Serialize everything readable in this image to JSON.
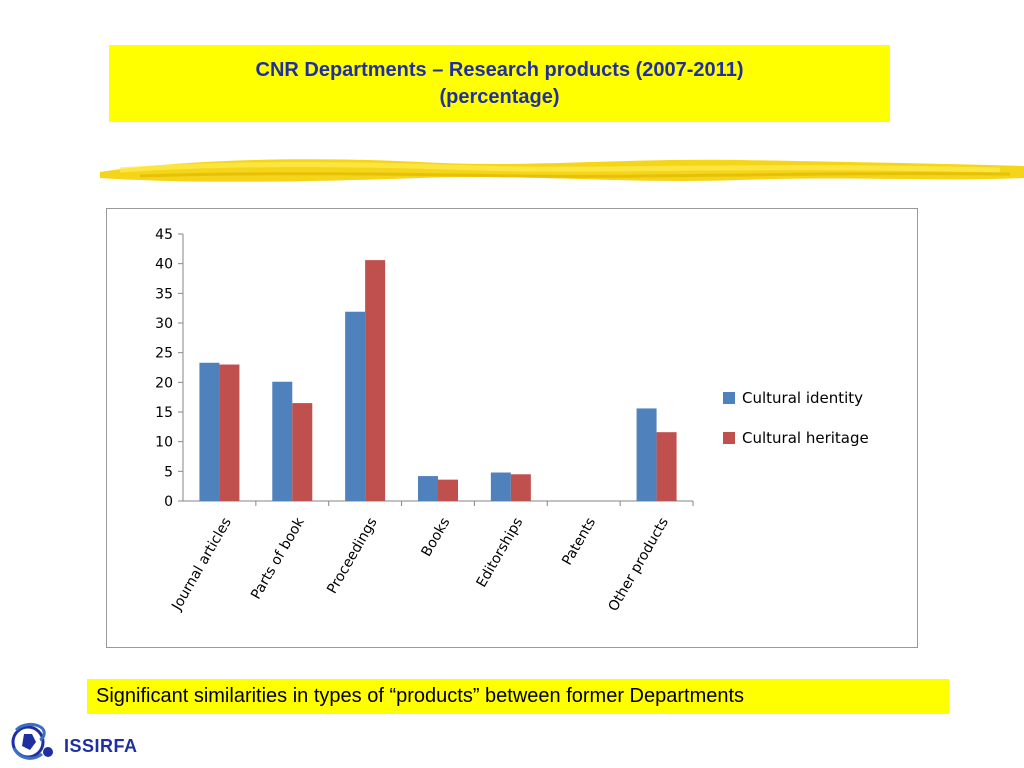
{
  "header": {
    "title_line1": "CNR Departments – Research products (2007-2011)",
    "title_line2": "(percentage)"
  },
  "chart_data": {
    "type": "bar",
    "categories": [
      "Journal articles",
      "Parts of book",
      "Proceedings",
      "Books",
      "Editorships",
      "Patents",
      "Other products"
    ],
    "series": [
      {
        "name": "Cultural identity",
        "values": [
          23.3,
          20.1,
          31.9,
          4.2,
          4.8,
          0,
          15.6
        ],
        "color": "#4f81bd"
      },
      {
        "name": "Cultural heritage",
        "values": [
          23.0,
          16.5,
          40.6,
          3.6,
          4.5,
          0,
          11.6
        ],
        "color": "#c0504d"
      }
    ],
    "yticks": [
      "0",
      "5",
      "10",
      "15",
      "20",
      "25",
      "30",
      "35",
      "40",
      "45"
    ],
    "ylim": [
      0,
      45
    ],
    "legend_position": "right",
    "grid": false
  },
  "footer": {
    "caption": "Significant similarities in types of “products” between former Departments",
    "logo_text": "ISSIRFA"
  },
  "colors": {
    "highlight": "#ffff00",
    "title_text": "#1f2fa0"
  }
}
